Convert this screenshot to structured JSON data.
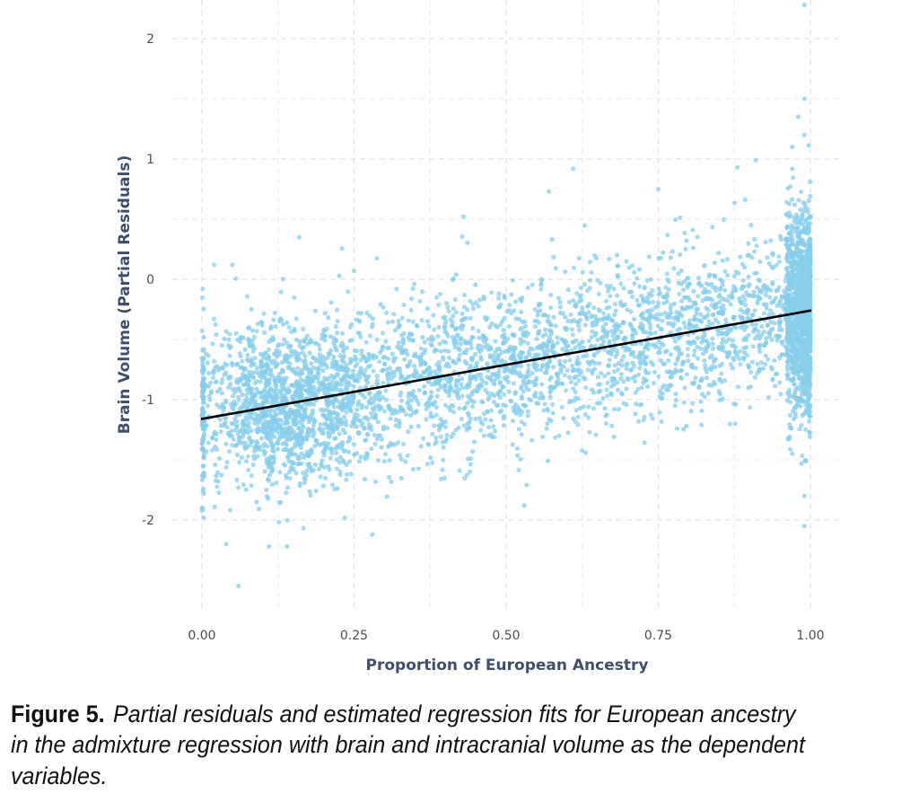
{
  "chart_data": {
    "type": "scatter",
    "title": "",
    "xlabel": "Proportion of European Ancestry",
    "ylabel": "Brain Volume (Partial Residuals)",
    "xlim": [
      -0.02,
      1.02
    ],
    "ylim": [
      -2.77,
      2.32
    ],
    "x_ticks": [
      0.0,
      0.25,
      0.5,
      0.75,
      1.0
    ],
    "x_tick_labels": [
      "0.00",
      "0.25",
      "0.50",
      "0.75",
      "1.00"
    ],
    "y_ticks": [
      -2,
      -1,
      0,
      1,
      2
    ],
    "y_tick_labels": [
      "-2",
      "-1",
      "0",
      "1",
      "2"
    ],
    "grid": true,
    "point_color": "#87ceeb",
    "line_color": "#000000",
    "regression_fit": {
      "x": [
        0.0,
        1.0
      ],
      "y": [
        -1.16,
        -0.26
      ]
    },
    "series": [
      {
        "name": "Partial residuals",
        "n_points": 5200,
        "clusters": [
          {
            "x_center": 0.13,
            "x_sd": 0.06,
            "y_center": -1.05,
            "y_sd": 0.33,
            "share": 0.24
          },
          {
            "x_range": [
              0.2,
              0.96
            ],
            "y_center_at_x0": -1.16,
            "y_slope": 0.9,
            "y_sd": 0.33,
            "share": 0.46
          },
          {
            "x_range": [
              0.96,
              1.0
            ],
            "y_center": -0.3,
            "y_sd": 0.4,
            "share": 0.26
          },
          {
            "x_value": 0.0,
            "y_center": -1.05,
            "y_sd": 0.33,
            "share": 0.02
          }
        ]
      }
    ],
    "outliers": [
      {
        "x": 0.99,
        "y": 2.28
      },
      {
        "x": 0.99,
        "y": 1.5
      },
      {
        "x": 0.98,
        "y": 1.35
      },
      {
        "x": 0.99,
        "y": 1.2
      },
      {
        "x": 0.97,
        "y": 1.1
      },
      {
        "x": 0.91,
        "y": 0.99
      },
      {
        "x": 0.88,
        "y": 0.93
      },
      {
        "x": 0.61,
        "y": 0.92
      },
      {
        "x": 0.57,
        "y": 0.73
      },
      {
        "x": 0.75,
        "y": 0.75
      },
      {
        "x": 0.43,
        "y": 0.52
      },
      {
        "x": 0.16,
        "y": 0.35
      },
      {
        "x": 0.02,
        "y": 0.12
      },
      {
        "x": 0.05,
        "y": 0.12
      },
      {
        "x": 0.25,
        "y": 0.07
      },
      {
        "x": 0.06,
        "y": -2.55
      },
      {
        "x": 0.11,
        "y": -2.22
      },
      {
        "x": 0.04,
        "y": -2.2
      },
      {
        "x": 0.28,
        "y": -2.12
      },
      {
        "x": 0.14,
        "y": -2.22
      },
      {
        "x": 0.99,
        "y": -2.05
      },
      {
        "x": 0.53,
        "y": -1.88
      },
      {
        "x": 0.99,
        "y": -1.8
      },
      {
        "x": 0.0,
        "y": -1.9
      }
    ]
  },
  "caption": {
    "label": "Figure 5.",
    "text": "Partial residuals and estimated regression fits for European ancestry\nin the admixture regression with brain and intracranial volume as the dependent\nvariables."
  }
}
